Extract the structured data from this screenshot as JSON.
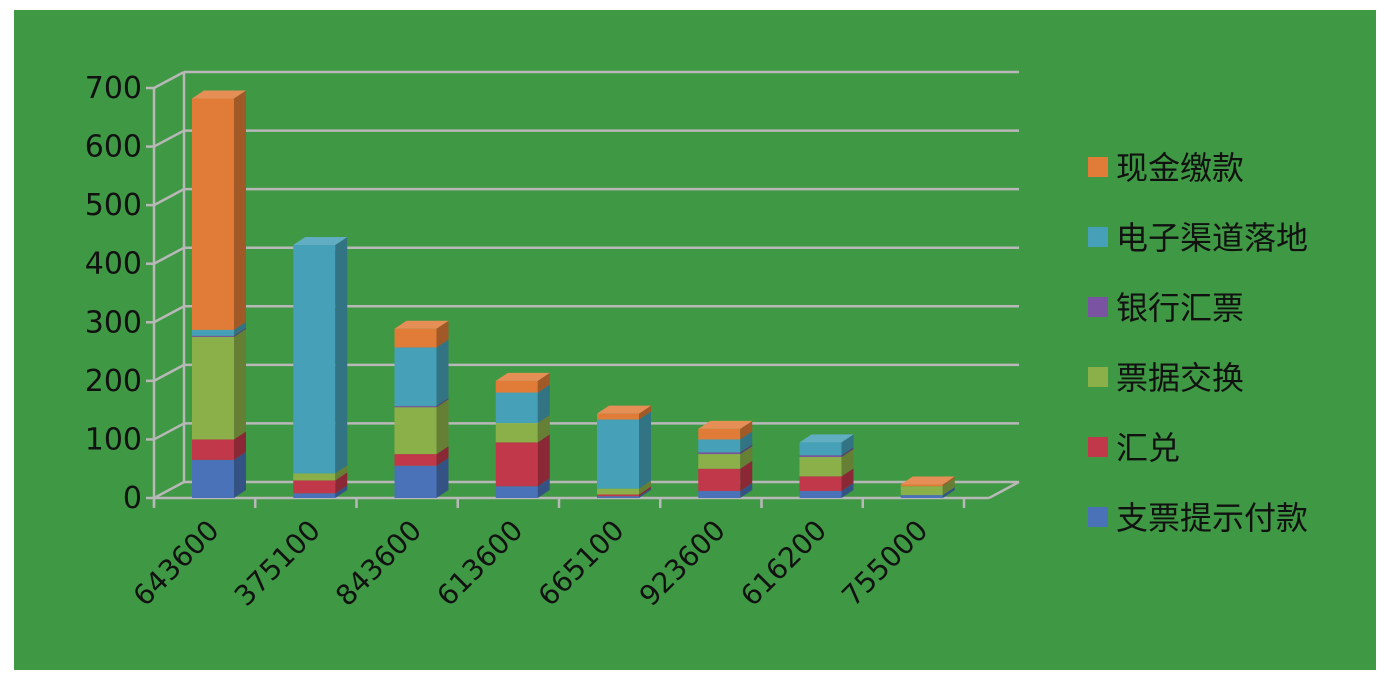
{
  "colors": {
    "background": "#3f9843",
    "gridline": "#b8b8b8",
    "axis_text": "#111111"
  },
  "chart_data": {
    "type": "bar",
    "stacked": true,
    "three_d": true,
    "title": "",
    "xlabel": "",
    "ylabel": "",
    "categories": [
      "643600",
      "375100",
      "843600",
      "613600",
      "665100",
      "923600",
      "616200",
      "755000"
    ],
    "ylim": [
      0,
      700
    ],
    "yticks": [
      0,
      100,
      200,
      300,
      400,
      500,
      600,
      700
    ],
    "grid": true,
    "legend_position": "right",
    "series": [
      {
        "name": "支票提示付款",
        "color": "#4a72b8",
        "values": [
          65,
          8,
          55,
          20,
          3,
          12,
          12,
          5
        ]
      },
      {
        "name": "汇兑",
        "color": "#c0384a",
        "values": [
          35,
          22,
          20,
          75,
          3,
          38,
          25,
          0
        ]
      },
      {
        "name": "票据交换",
        "color": "#8cb049",
        "values": [
          175,
          12,
          80,
          33,
          10,
          25,
          33,
          15
        ]
      },
      {
        "name": "银行汇票",
        "color": "#7a54a3",
        "values": [
          2,
          0,
          2,
          0,
          0,
          3,
          3,
          0
        ]
      },
      {
        "name": "电子渠道落地",
        "color": "#45a0b8",
        "values": [
          10,
          390,
          100,
          52,
          118,
          22,
          22,
          0
        ]
      },
      {
        "name": "现金缴款",
        "color": "#e07b38",
        "values": [
          395,
          0,
          32,
          20,
          10,
          18,
          0,
          3
        ]
      }
    ],
    "legend_order": [
      "现金缴款",
      "电子渠道落地",
      "银行汇票",
      "票据交换",
      "汇兑",
      "支票提示付款"
    ]
  }
}
